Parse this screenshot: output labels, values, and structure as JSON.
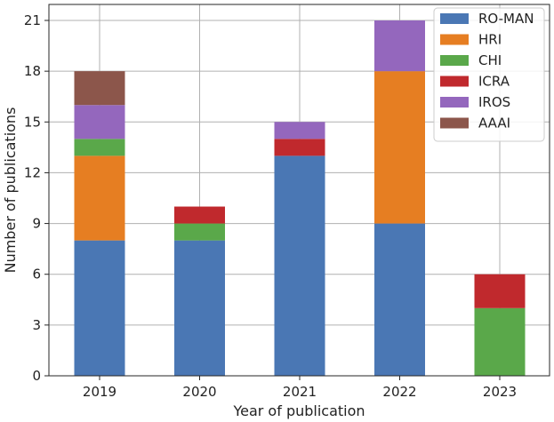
{
  "chart_data": {
    "type": "bar",
    "stacked": true,
    "categories": [
      "2019",
      "2020",
      "2021",
      "2022",
      "2023"
    ],
    "series": [
      {
        "name": "RO-MAN",
        "color": "#4a77b4",
        "values": [
          8,
          8,
          13,
          9,
          0
        ]
      },
      {
        "name": "HRI",
        "color": "#e67e22",
        "values": [
          5,
          0,
          0,
          9,
          0
        ]
      },
      {
        "name": "CHI",
        "color": "#5aa84a",
        "values": [
          1,
          1,
          0,
          0,
          4
        ]
      },
      {
        "name": "ICRA",
        "color": "#c0292d",
        "values": [
          0,
          1,
          1,
          0,
          2
        ]
      },
      {
        "name": "IROS",
        "color": "#9467bd",
        "values": [
          2,
          0,
          1,
          3,
          0
        ]
      },
      {
        "name": "AAAI",
        "color": "#8c564b",
        "values": [
          2,
          0,
          0,
          0,
          0
        ]
      }
    ],
    "title": "",
    "xlabel": "Year of publication",
    "ylabel": "Number of publications",
    "ylim": [
      0,
      21
    ],
    "yticks": [
      "0",
      "3",
      "6",
      "9",
      "12",
      "15",
      "18",
      "21"
    ],
    "grid": true,
    "legend_position": "top-right"
  }
}
